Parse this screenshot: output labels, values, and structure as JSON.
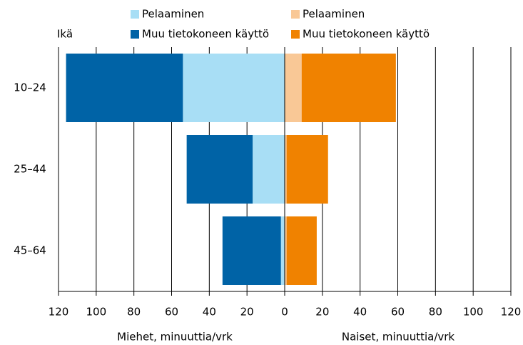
{
  "chart_data": [
    {
      "type": "bar",
      "ylabel": "Ikä",
      "xlabel": "Miehet, minuuttia/vrk",
      "categories": [
        "10–24",
        "25–44",
        "45–64"
      ],
      "series": [
        {
          "name": "Pelaaminen",
          "color": "#a8def5",
          "values": [
            54,
            17,
            2
          ]
        },
        {
          "name": "Muu tietokoneen käyttö",
          "color": "#0063a6",
          "values": [
            62,
            35,
            31
          ]
        }
      ],
      "xlim": [
        120,
        0
      ],
      "xticks": [
        120,
        100,
        80,
        60,
        40,
        20,
        0
      ],
      "grid": true
    },
    {
      "type": "bar",
      "xlabel": "Naiset, minuuttia/vrk",
      "series": [
        {
          "name": "Pelaaminen",
          "color": "#f9c896",
          "values": [
            9,
            1,
            1
          ]
        },
        {
          "name": "Muu tietokoneen käyttö",
          "color": "#f08200",
          "values": [
            50,
            22,
            16
          ]
        }
      ],
      "xlim": [
        0,
        120
      ],
      "xticks": [
        20,
        40,
        60,
        80,
        100,
        120
      ],
      "grid": true
    }
  ]
}
